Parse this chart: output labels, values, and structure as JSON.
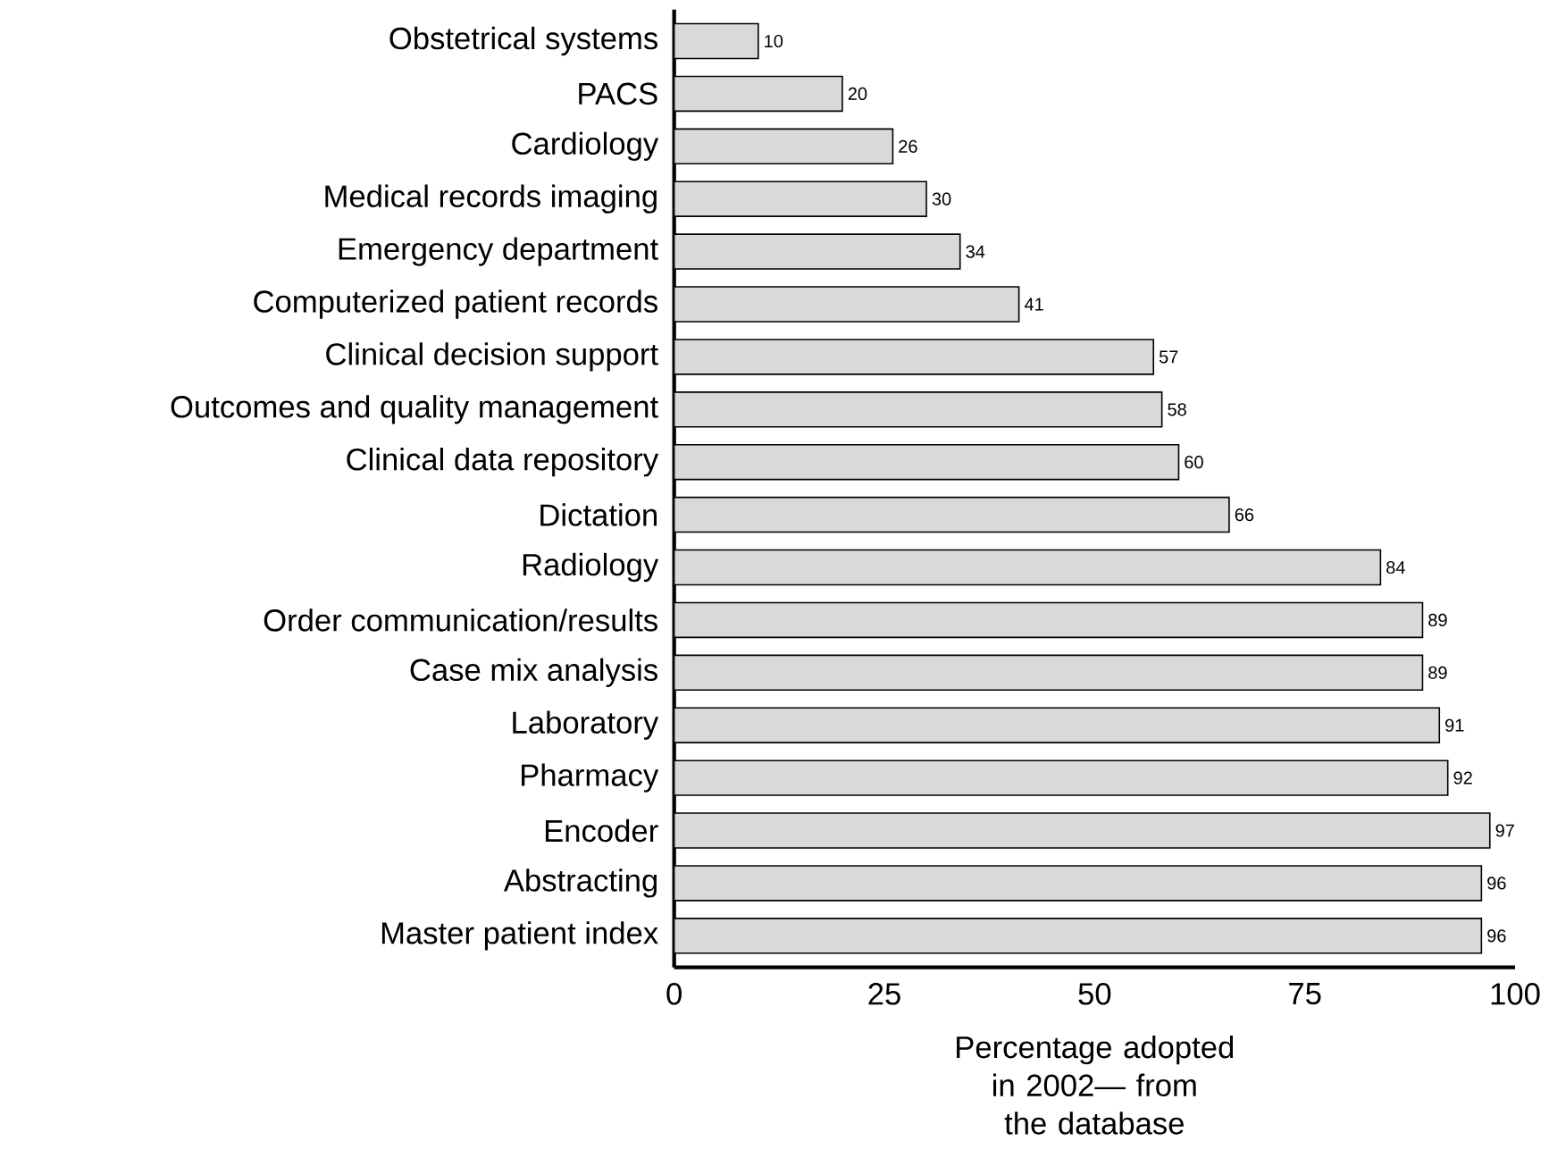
{
  "chart_data": {
    "type": "bar",
    "orientation": "horizontal",
    "xlabel": "Percentage adopted in 2002— from the database",
    "categories": [
      "Obstetrical systems",
      "PACS",
      "Cardiology",
      "Medical records imaging",
      "Emergency department",
      "Computerized patient records",
      "Clinical decision support",
      "Outcomes and quality management",
      "Clinical data repository",
      "Dictation",
      "Radiology",
      "Order communication/results",
      "Case mix analysis",
      "Laboratory",
      "Pharmacy",
      "Encoder",
      "Abstracting",
      "Master patient index"
    ],
    "values": [
      10,
      20,
      26,
      30,
      34,
      41,
      57,
      58,
      60,
      66,
      84,
      89,
      89,
      91,
      92,
      97,
      96,
      96
    ],
    "color": "#d9d9d9",
    "xlim": [
      0,
      100
    ],
    "xticks": [
      0,
      25,
      50,
      75,
      100
    ],
    "data_labels": true
  }
}
